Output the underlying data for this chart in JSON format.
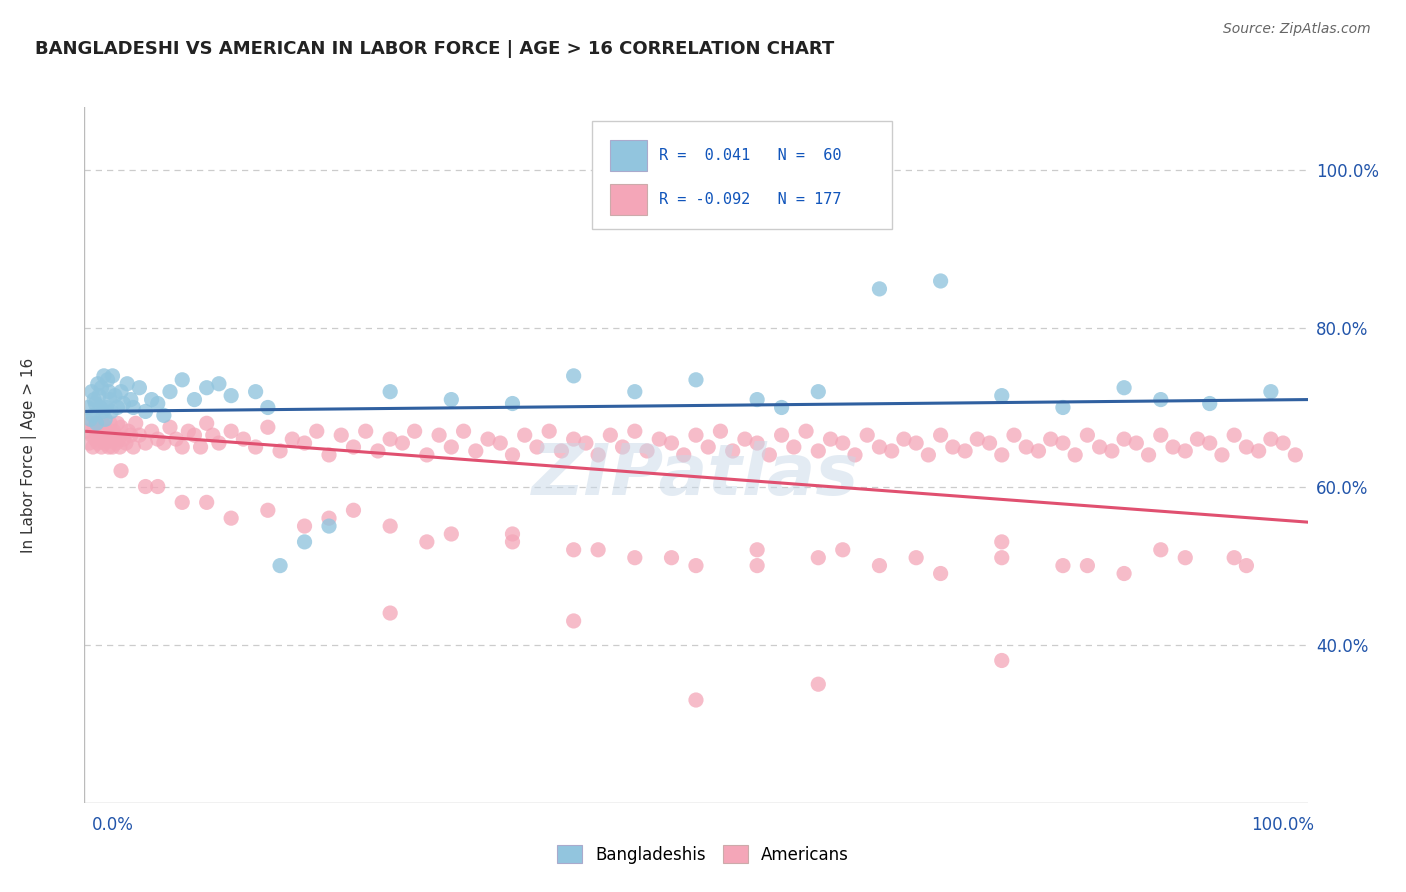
{
  "title": "BANGLADESHI VS AMERICAN IN LABOR FORCE | AGE > 16 CORRELATION CHART",
  "source_text": "Source: ZipAtlas.com",
  "ylabel": "In Labor Force | Age > 16",
  "blue_color": "#92C5DE",
  "pink_color": "#F4A6B8",
  "blue_line_color": "#3060A0",
  "pink_line_color": "#E05070",
  "watermark": "ZIPatlas",
  "background_color": "#FFFFFF",
  "grid_color": "#CCCCCC",
  "legend_r1": "R =  0.041",
  "legend_n1": "N =  60",
  "legend_r2": "R = -0.092",
  "legend_n2": "N = 177",
  "blue_scatter_x": [
    0.3,
    0.5,
    0.6,
    0.7,
    0.8,
    0.9,
    1.0,
    1.1,
    1.2,
    1.3,
    1.4,
    1.5,
    1.6,
    1.7,
    1.8,
    1.9,
    2.0,
    2.1,
    2.2,
    2.3,
    2.5,
    2.7,
    3.0,
    3.2,
    3.5,
    3.8,
    4.0,
    4.5,
    5.0,
    5.5,
    6.0,
    6.5,
    7.0,
    8.0,
    9.0,
    10.0,
    11.0,
    12.0,
    14.0,
    15.0,
    16.0,
    18.0,
    20.0,
    25.0,
    30.0,
    35.0,
    40.0,
    45.0,
    50.0,
    55.0,
    57.0,
    60.0,
    65.0,
    70.0,
    75.0,
    80.0,
    85.0,
    88.0,
    92.0,
    97.0
  ],
  "blue_scatter_y": [
    70.0,
    68.5,
    72.0,
    69.0,
    71.0,
    70.5,
    68.0,
    73.0,
    71.5,
    70.0,
    72.5,
    69.5,
    74.0,
    68.5,
    70.0,
    73.5,
    72.0,
    71.0,
    69.5,
    74.0,
    71.5,
    70.0,
    72.0,
    70.5,
    73.0,
    71.0,
    70.0,
    72.5,
    69.5,
    71.0,
    70.5,
    69.0,
    72.0,
    73.5,
    71.0,
    72.5,
    73.0,
    71.5,
    72.0,
    70.0,
    50.0,
    53.0,
    55.0,
    72.0,
    71.0,
    70.5,
    74.0,
    72.0,
    73.5,
    71.0,
    70.0,
    72.0,
    85.0,
    86.0,
    71.5,
    70.0,
    72.5,
    71.0,
    70.5,
    72.0
  ],
  "pink_scatter_x": [
    0.2,
    0.4,
    0.5,
    0.6,
    0.7,
    0.8,
    0.9,
    1.0,
    1.1,
    1.2,
    1.3,
    1.4,
    1.5,
    1.6,
    1.7,
    1.8,
    1.9,
    2.0,
    2.1,
    2.2,
    2.3,
    2.4,
    2.5,
    2.6,
    2.7,
    2.8,
    2.9,
    3.0,
    3.2,
    3.4,
    3.6,
    3.8,
    4.0,
    4.2,
    4.5,
    5.0,
    5.5,
    6.0,
    6.5,
    7.0,
    7.5,
    8.0,
    8.5,
    9.0,
    9.5,
    10.0,
    10.5,
    11.0,
    12.0,
    13.0,
    14.0,
    15.0,
    16.0,
    17.0,
    18.0,
    19.0,
    20.0,
    21.0,
    22.0,
    23.0,
    24.0,
    25.0,
    26.0,
    27.0,
    28.0,
    29.0,
    30.0,
    31.0,
    32.0,
    33.0,
    34.0,
    35.0,
    36.0,
    37.0,
    38.0,
    39.0,
    40.0,
    41.0,
    42.0,
    43.0,
    44.0,
    45.0,
    46.0,
    47.0,
    48.0,
    49.0,
    50.0,
    51.0,
    52.0,
    53.0,
    54.0,
    55.0,
    56.0,
    57.0,
    58.0,
    59.0,
    60.0,
    61.0,
    62.0,
    63.0,
    64.0,
    65.0,
    66.0,
    67.0,
    68.0,
    69.0,
    70.0,
    71.0,
    72.0,
    73.0,
    74.0,
    75.0,
    76.0,
    77.0,
    78.0,
    79.0,
    80.0,
    81.0,
    82.0,
    83.0,
    84.0,
    85.0,
    86.0,
    87.0,
    88.0,
    89.0,
    90.0,
    91.0,
    92.0,
    93.0,
    94.0,
    95.0,
    96.0,
    97.0,
    98.0,
    99.0,
    5.0,
    8.0,
    12.0,
    18.0,
    22.0,
    28.0,
    35.0,
    42.0,
    48.0,
    55.0,
    62.0,
    68.0,
    75.0,
    82.0,
    88.0,
    94.0,
    3.0,
    6.0,
    10.0,
    15.0,
    20.0,
    25.0,
    30.0,
    35.0,
    40.0,
    45.0,
    50.0,
    55.0,
    60.0,
    65.0,
    70.0,
    75.0,
    80.0,
    85.0,
    90.0,
    95.0,
    50.0,
    25.0,
    75.0,
    40.0,
    60.0
  ],
  "pink_scatter_y": [
    67.0,
    65.5,
    68.0,
    66.5,
    65.0,
    67.5,
    66.0,
    68.0,
    65.5,
    67.0,
    66.5,
    65.0,
    68.0,
    66.5,
    65.5,
    67.0,
    66.0,
    65.0,
    68.0,
    66.5,
    65.0,
    67.0,
    66.5,
    65.5,
    68.0,
    66.0,
    65.0,
    67.5,
    66.0,
    65.5,
    67.0,
    66.5,
    65.0,
    68.0,
    66.5,
    65.5,
    67.0,
    66.0,
    65.5,
    67.5,
    66.0,
    65.0,
    67.0,
    66.5,
    65.0,
    68.0,
    66.5,
    65.5,
    67.0,
    66.0,
    65.0,
    67.5,
    64.5,
    66.0,
    65.5,
    67.0,
    64.0,
    66.5,
    65.0,
    67.0,
    64.5,
    66.0,
    65.5,
    67.0,
    64.0,
    66.5,
    65.0,
    67.0,
    64.5,
    66.0,
    65.5,
    64.0,
    66.5,
    65.0,
    67.0,
    64.5,
    66.0,
    65.5,
    64.0,
    66.5,
    65.0,
    67.0,
    64.5,
    66.0,
    65.5,
    64.0,
    66.5,
    65.0,
    67.0,
    64.5,
    66.0,
    65.5,
    64.0,
    66.5,
    65.0,
    67.0,
    64.5,
    66.0,
    65.5,
    64.0,
    66.5,
    65.0,
    64.5,
    66.0,
    65.5,
    64.0,
    66.5,
    65.0,
    64.5,
    66.0,
    65.5,
    64.0,
    66.5,
    65.0,
    64.5,
    66.0,
    65.5,
    64.0,
    66.5,
    65.0,
    64.5,
    66.0,
    65.5,
    64.0,
    66.5,
    65.0,
    64.5,
    66.0,
    65.5,
    64.0,
    66.5,
    65.0,
    64.5,
    66.0,
    65.5,
    64.0,
    60.0,
    58.0,
    56.0,
    55.0,
    57.0,
    53.0,
    54.0,
    52.0,
    51.0,
    50.0,
    52.0,
    51.0,
    53.0,
    50.0,
    52.0,
    51.0,
    62.0,
    60.0,
    58.0,
    57.0,
    56.0,
    55.0,
    54.0,
    53.0,
    52.0,
    51.0,
    50.0,
    52.0,
    51.0,
    50.0,
    49.0,
    51.0,
    50.0,
    49.0,
    51.0,
    50.0,
    33.0,
    44.0,
    38.0,
    43.0,
    35.0
  ],
  "ytick_values": [
    40.0,
    60.0,
    80.0,
    100.0
  ],
  "xlim": [
    0.0,
    100.0
  ],
  "ylim": [
    20.0,
    108.0
  ],
  "blue_trend_x0": 0.0,
  "blue_trend_y0": 69.5,
  "blue_trend_x1": 100.0,
  "blue_trend_y1": 71.0,
  "pink_trend_x0": 0.0,
  "pink_trend_y0": 67.0,
  "pink_trend_x1": 100.0,
  "pink_trend_y1": 55.5
}
